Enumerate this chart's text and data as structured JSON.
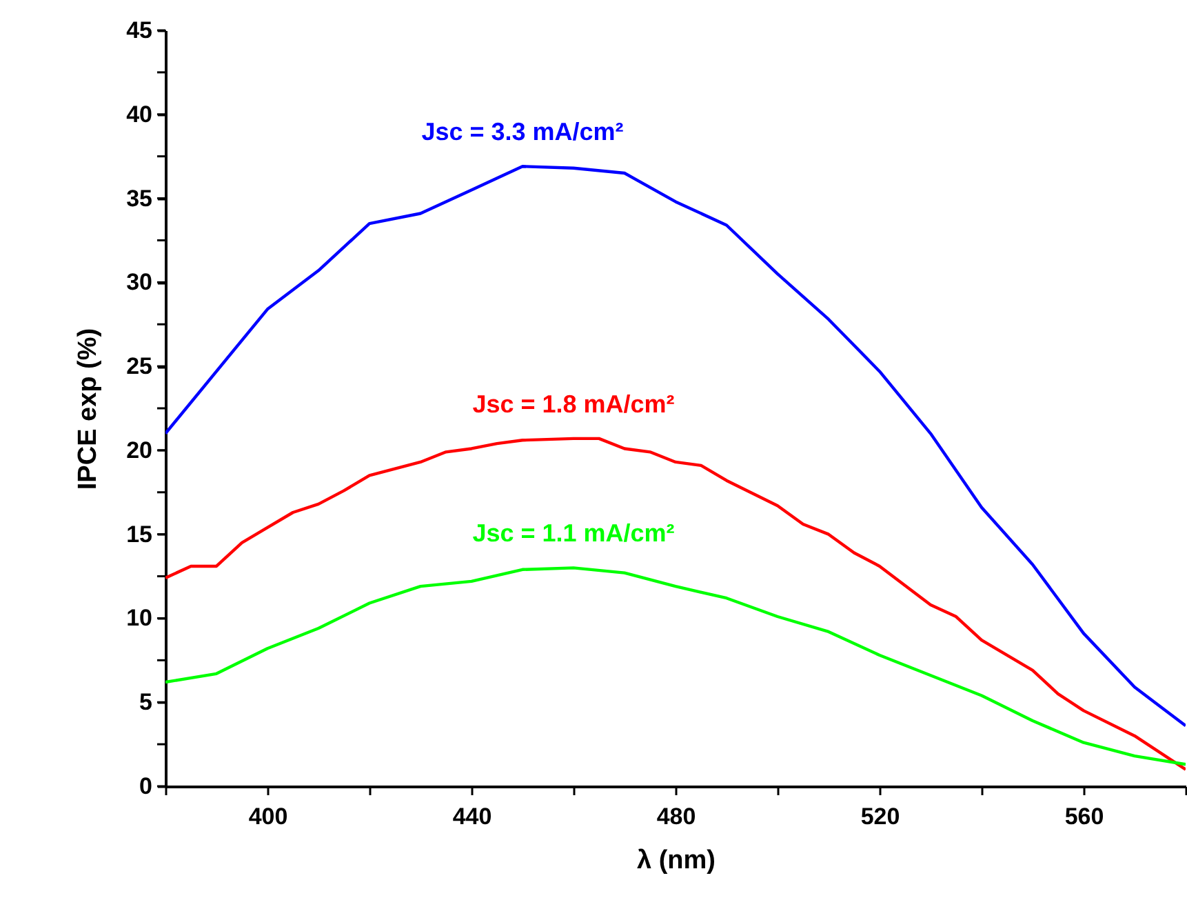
{
  "chart_data": {
    "type": "line",
    "xlabel": "λ (nm)",
    "ylabel": "IPCE exp (%)",
    "xlim": [
      380,
      580
    ],
    "ylim": [
      0,
      45
    ],
    "xticks": [
      {
        "value": 380,
        "label": null
      },
      400,
      {
        "value": 420,
        "label": null
      },
      440,
      {
        "value": 460,
        "label": null
      },
      480,
      {
        "value": 500,
        "label": null
      },
      520,
      {
        "value": 540,
        "label": null
      },
      560,
      {
        "value": 580,
        "label": null
      }
    ],
    "yticks": [
      0,
      {
        "value": 2.5,
        "label": null
      },
      5,
      {
        "value": 7.5,
        "label": null
      },
      10,
      {
        "value": 12.5,
        "label": null
      },
      15,
      {
        "value": 17.5,
        "label": null
      },
      20,
      {
        "value": 22.5,
        "label": null
      },
      25,
      {
        "value": 27.5,
        "label": null
      },
      30,
      {
        "value": 32.5,
        "label": null
      },
      35,
      {
        "value": 37.5,
        "label": null
      },
      40,
      {
        "value": 42.5,
        "label": null
      },
      45
    ],
    "grid": false,
    "marker": "none",
    "line_style": "solid",
    "series": [
      {
        "name": "Jsc = 3.3 mA/cm²",
        "color": "#0000ff",
        "x": [
          380,
          400,
          410,
          420,
          430,
          440,
          450,
          460,
          470,
          480,
          490,
          500,
          510,
          520,
          530,
          540,
          550,
          560,
          570,
          580
        ],
        "values": [
          21.0,
          28.4,
          30.7,
          33.5,
          34.1,
          35.5,
          36.9,
          36.8,
          36.5,
          34.8,
          33.4,
          30.5,
          27.8,
          24.7,
          21.0,
          16.6,
          13.2,
          9.1,
          5.9,
          3.6
        ]
      },
      {
        "name": "Jsc = 1.8 mA/cm²",
        "color": "#ff0000",
        "x": [
          380,
          385,
          390,
          395,
          400,
          405,
          410,
          415,
          420,
          425,
          430,
          435,
          440,
          445,
          450,
          460,
          465,
          470,
          475,
          480,
          485,
          490,
          500,
          505,
          510,
          515,
          520,
          530,
          535,
          540,
          550,
          555,
          560,
          570,
          580
        ],
        "values": [
          12.4,
          13.1,
          13.1,
          14.5,
          15.4,
          16.3,
          16.8,
          17.6,
          18.5,
          18.9,
          19.3,
          19.9,
          20.1,
          20.4,
          20.6,
          20.7,
          20.7,
          20.1,
          19.9,
          19.3,
          19.1,
          18.2,
          16.7,
          15.6,
          15.0,
          13.9,
          13.1,
          10.8,
          10.1,
          8.7,
          6.9,
          5.5,
          4.5,
          3.0,
          1.0
        ]
      },
      {
        "name": "Jsc = 1.1 mA/cm²",
        "color": "#00ff00",
        "x": [
          380,
          390,
          400,
          410,
          420,
          430,
          440,
          450,
          460,
          470,
          480,
          490,
          500,
          510,
          520,
          530,
          540,
          550,
          560,
          570,
          580
        ],
        "values": [
          6.2,
          6.7,
          8.2,
          9.4,
          10.9,
          11.9,
          12.2,
          12.9,
          13.0,
          12.7,
          11.9,
          11.2,
          10.1,
          9.2,
          7.8,
          6.6,
          5.4,
          3.9,
          2.6,
          1.8,
          1.3
        ]
      }
    ]
  }
}
